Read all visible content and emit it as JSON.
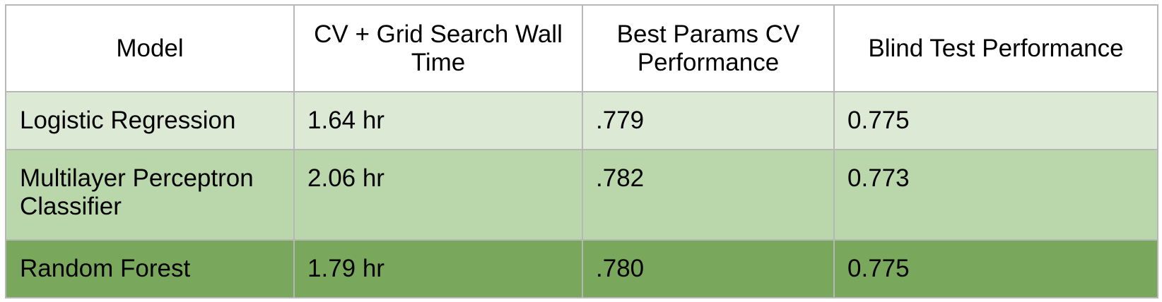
{
  "table": {
    "headers": [
      "Model",
      "CV + Grid Search Wall Time",
      "Best Params CV Performance",
      "Blind Test Performance"
    ],
    "rows": [
      {
        "model": "Logistic Regression",
        "wall_time": "1.64 hr",
        "cv_performance": ".779",
        "blind_test": "0.775"
      },
      {
        "model": "Multilayer Perceptron Classifier",
        "wall_time": "2.06 hr",
        "cv_performance": ".782",
        "blind_test": "0.773"
      },
      {
        "model": "Random Forest",
        "wall_time": "1.79 hr",
        "cv_performance": ".780",
        "blind_test": "0.775"
      }
    ],
    "colors": {
      "header_bg": "#ffffff",
      "row_1_bg": "#dce9d5",
      "row_2_bg": "#b9d7aa",
      "row_3_bg": "#79a85c",
      "border": "#b7b7b7"
    }
  }
}
